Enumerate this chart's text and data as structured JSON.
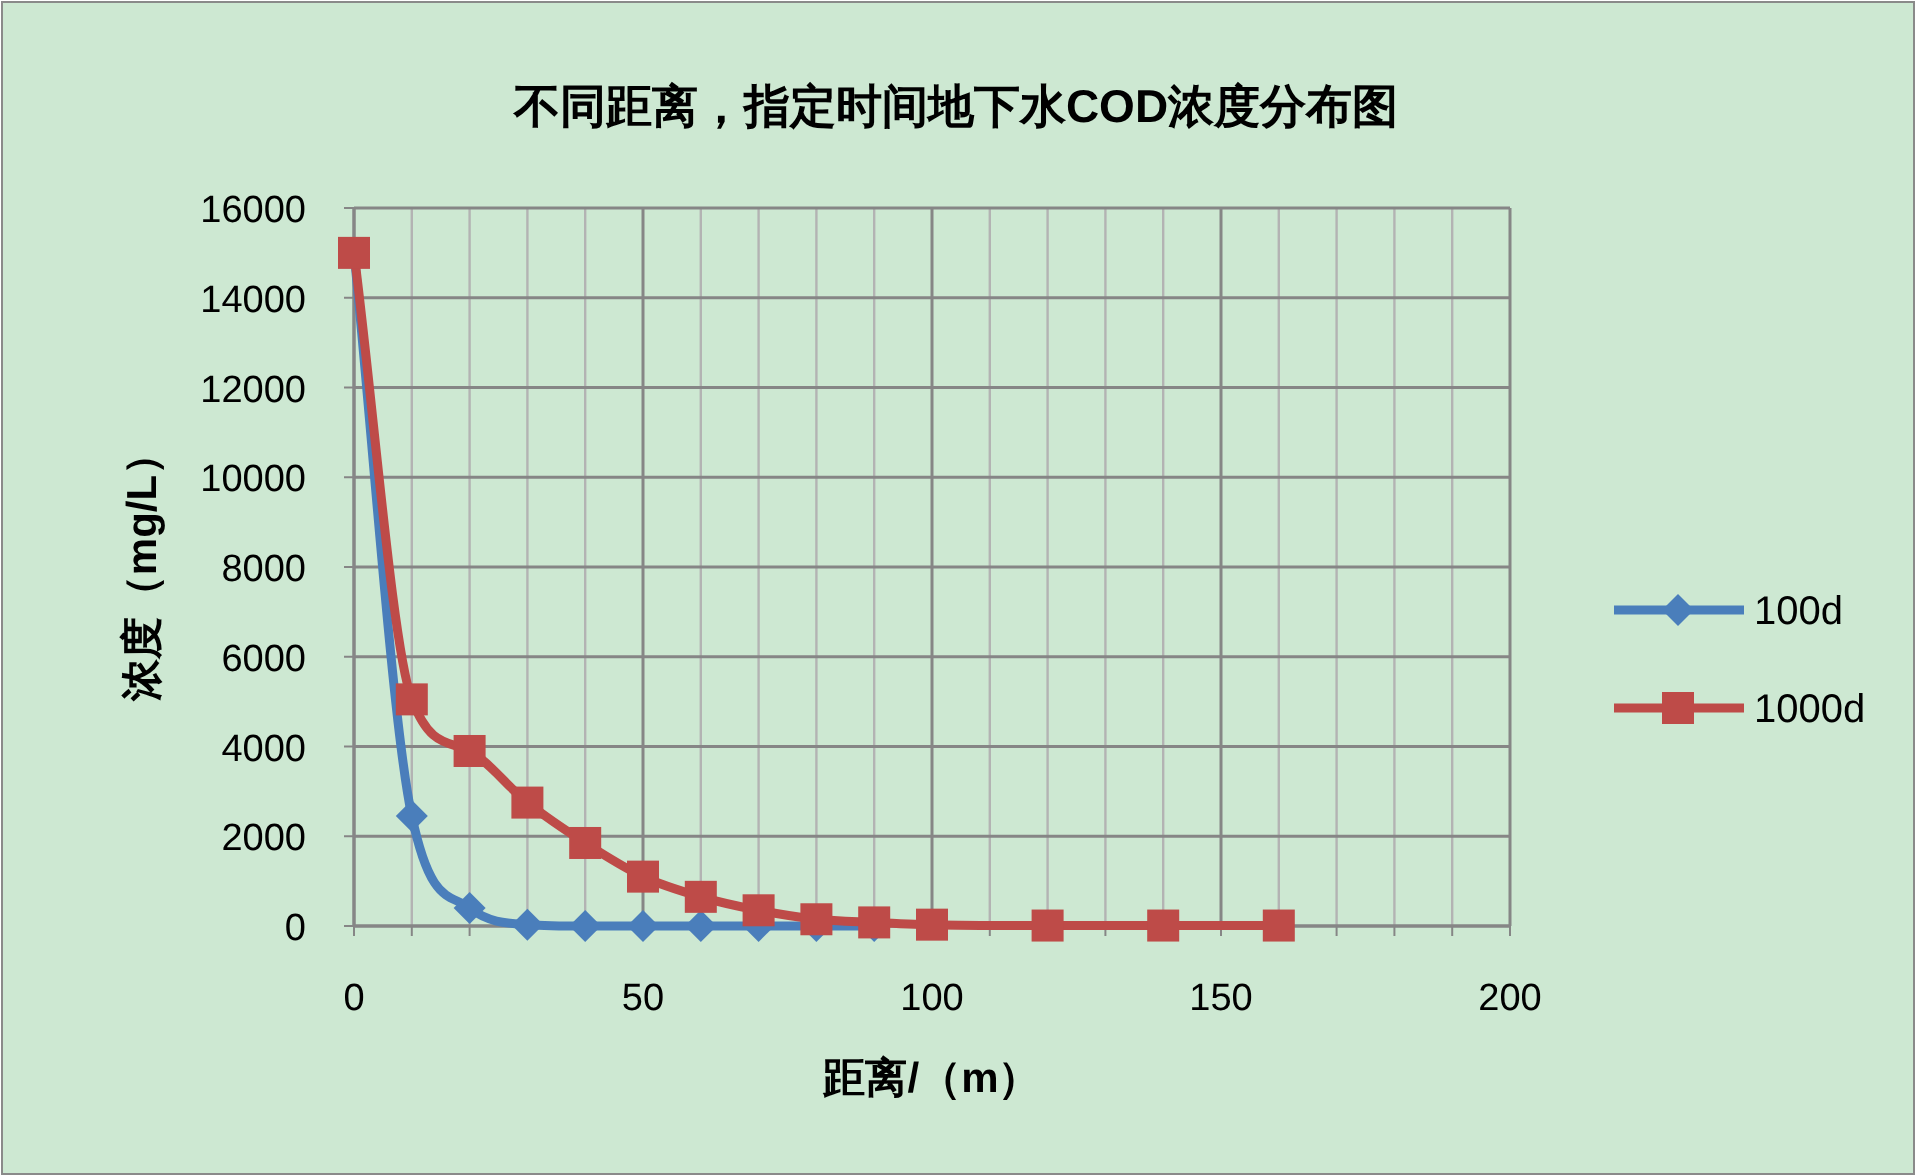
{
  "chart_data": {
    "type": "line",
    "title": "不同距离，指定时间地下水COD浓度分布图",
    "xlabel": "距离/（m）",
    "ylabel": "浓度（mg/L）",
    "xlim": [
      0,
      200
    ],
    "xticks": [
      0,
      {
        "value": 10,
        "label": null
      },
      {
        "value": 20,
        "label": null
      },
      {
        "value": 30,
        "label": null
      },
      {
        "value": 40,
        "label": null
      },
      50,
      {
        "value": 60,
        "label": null
      },
      {
        "value": 70,
        "label": null
      },
      {
        "value": 80,
        "label": null
      },
      {
        "value": 90,
        "label": null
      },
      100,
      {
        "value": 110,
        "label": null
      },
      {
        "value": 120,
        "label": null
      },
      {
        "value": 130,
        "label": null
      },
      {
        "value": 140,
        "label": null
      },
      150,
      {
        "value": 160,
        "label": null
      },
      {
        "value": 170,
        "label": null
      },
      {
        "value": 180,
        "label": null
      },
      {
        "value": 190,
        "label": null
      },
      200
    ],
    "ylim": [
      0,
      16000
    ],
    "yticks": [
      0,
      2000,
      4000,
      6000,
      8000,
      10000,
      12000,
      14000,
      16000
    ],
    "grid": true,
    "legend": "right",
    "series": [
      {
        "name": "100d",
        "color": "#4a7ebb",
        "marker": "diamond",
        "x": [
          0,
          10,
          20,
          30,
          40,
          50,
          60,
          70,
          80,
          90
        ],
        "values": [
          15000,
          2450,
          400,
          30,
          0,
          0,
          0,
          0,
          0,
          0
        ]
      },
      {
        "name": "1000d",
        "color": "#be4b48",
        "marker": "square",
        "x": [
          0,
          10,
          20,
          30,
          40,
          50,
          60,
          70,
          80,
          90,
          100,
          120,
          140,
          160
        ],
        "values": [
          15000,
          5050,
          3900,
          2750,
          1850,
          1100,
          650,
          350,
          150,
          80,
          30,
          10,
          10,
          10
        ]
      }
    ]
  }
}
